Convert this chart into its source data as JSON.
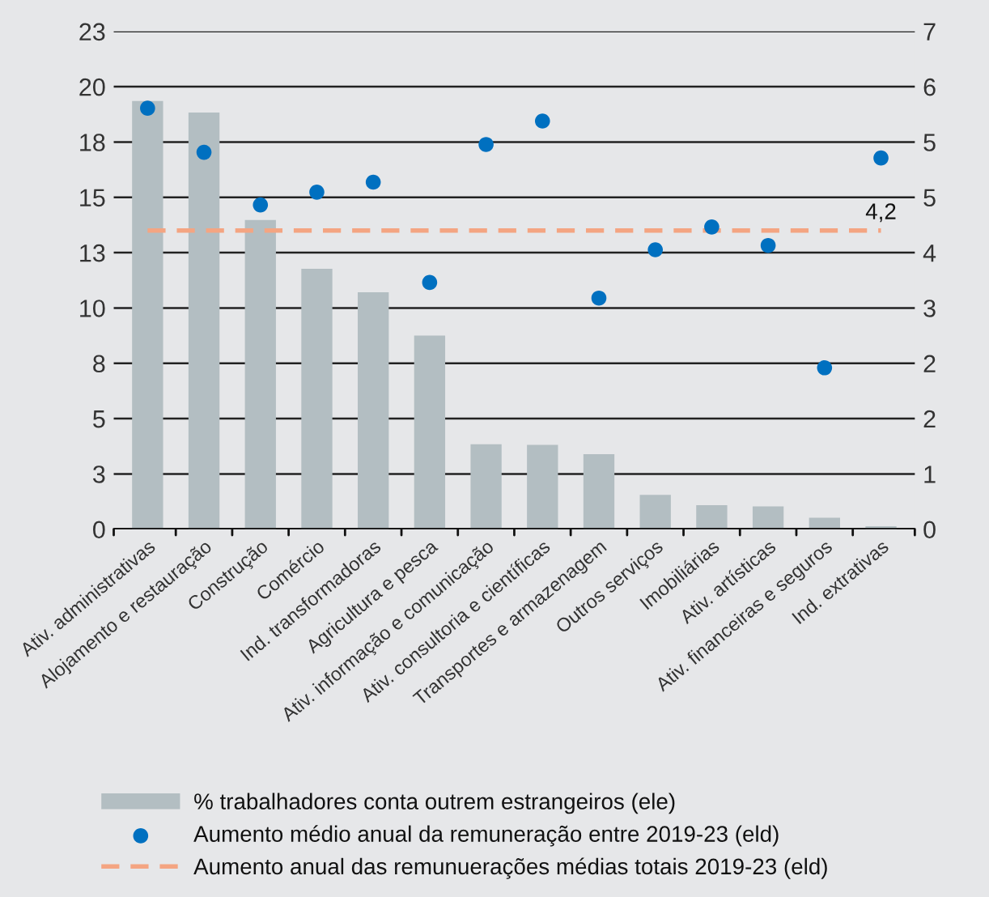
{
  "chart_data": {
    "type": "bar",
    "categories": [
      "Ativ. administrativas",
      "Alojamento e restauração",
      "Construção",
      "Comércio",
      "Ind. transformadoras",
      "Agricultura e pesca",
      "Ativ. informação e comunicação",
      "Ativ. consultoria e científicas",
      "Transportes e armazenagem",
      "Outros serviços",
      "Imobiliárias",
      "Ativ. artísticas",
      "Ativ. financeiras e seguros",
      "Ind. extrativas"
    ],
    "series": [
      {
        "name": "% trabalhadores conta outrem estrangeiros (ele)",
        "type": "bar",
        "color": "#b3bec2",
        "values": [
          19.35,
          18.83,
          13.98,
          11.77,
          10.71,
          8.75,
          3.84,
          3.81,
          3.39,
          1.55,
          1.09,
          1.03,
          0.52,
          0.14
        ]
      },
      {
        "name": "Aumento médio anual da remuneração entre 2019-23 (eld)",
        "type": "scatter",
        "axis": "y2",
        "color": "#0070c0",
        "marker": "circle",
        "values": [
          5.92,
          5.3,
          4.56,
          4.74,
          4.88,
          3.47,
          5.41,
          5.74,
          3.25,
          3.93,
          4.25,
          3.99,
          2.27,
          5.22
        ]
      },
      {
        "name": "Aumento anual das remunuerações médias totais 2019-23 (eld)",
        "type": "line",
        "axis": "y2",
        "color": "#f4a582",
        "line_style": "dashed",
        "values": [
          4.2,
          4.2,
          4.2,
          4.2,
          4.2,
          4.2,
          4.2,
          4.2,
          4.2,
          4.2,
          4.2,
          4.2,
          4.2,
          4.2
        ],
        "value_labels": [
          null,
          null,
          null,
          null,
          null,
          null,
          null,
          null,
          null,
          null,
          null,
          null,
          null,
          "4,2"
        ]
      }
    ],
    "ylim": [
      0,
      22.5
    ],
    "yticks": [
      0,
      {
        "value": 2.5,
        "label": "3"
      },
      5,
      {
        "value": 7.5,
        "label": "8"
      },
      10,
      {
        "value": 12.5,
        "label": "13"
      },
      15,
      {
        "value": 17.5,
        "label": "18"
      },
      20,
      {
        "value": 22.5,
        "label": "23"
      }
    ],
    "y2lim": [
      0,
      7
    ],
    "y2ticks": [
      0,
      {
        "value": 0.778,
        "label": "1"
      },
      {
        "value": 1.556,
        "label": "2"
      },
      {
        "value": 2.333,
        "label": "2"
      },
      {
        "value": 3.111,
        "label": "3"
      },
      {
        "value": 3.889,
        "label": "4"
      },
      {
        "value": 4.667,
        "label": "5"
      },
      {
        "value": 5.444,
        "label": "5"
      },
      {
        "value": 6.222,
        "label": "6"
      },
      7
    ],
    "grid": "y",
    "legend": "bottom"
  }
}
